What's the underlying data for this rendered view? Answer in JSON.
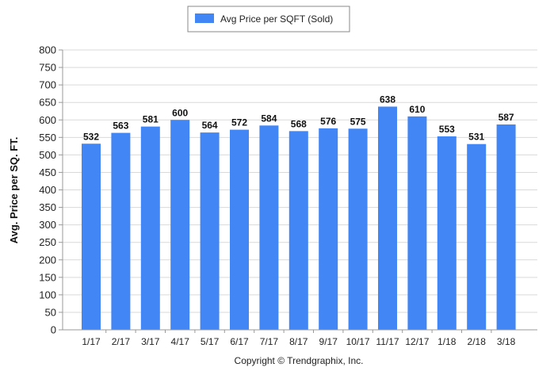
{
  "chart_data": {
    "type": "bar",
    "categories": [
      "1/17",
      "2/17",
      "3/17",
      "4/17",
      "5/17",
      "6/17",
      "7/17",
      "8/17",
      "9/17",
      "10/17",
      "11/17",
      "12/17",
      "1/18",
      "2/18",
      "3/18"
    ],
    "series": [
      {
        "name": "Avg Price per SQFT (Sold)",
        "values": [
          532,
          563,
          581,
          600,
          564,
          572,
          584,
          568,
          576,
          575,
          638,
          610,
          553,
          531,
          587
        ],
        "color": "#4285f4"
      }
    ],
    "ylabel": "Avg. Price per SQ. FT.",
    "xlabel": "",
    "ylim": [
      0,
      800
    ],
    "yticks": [
      0,
      50,
      100,
      150,
      200,
      250,
      300,
      350,
      400,
      450,
      500,
      550,
      600,
      650,
      700,
      750,
      800
    ],
    "grid": true,
    "legend_position": "top-center",
    "data_labels": true
  },
  "footer": {
    "copyright": "Copyright © Trendgraphix, Inc."
  }
}
